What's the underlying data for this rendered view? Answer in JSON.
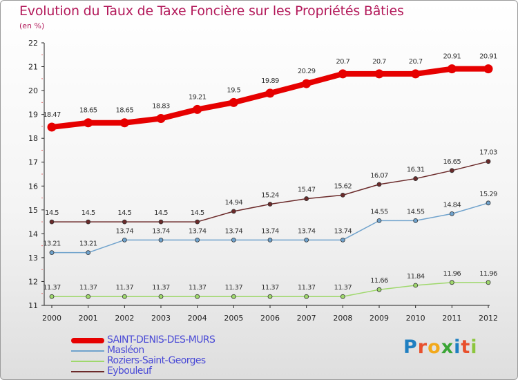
{
  "title": "Evolution du Taux de Taxe Foncière sur les Propriétés Bâties",
  "unit": "(en %)",
  "logo": {
    "text": "Proxiti",
    "letters": [
      {
        "ch": "P",
        "color": "#1f7fc1"
      },
      {
        "ch": "r",
        "color": "#e8502d"
      },
      {
        "ch": "o",
        "color": "#f2a91b"
      },
      {
        "ch": "x",
        "color": "#3aa535"
      },
      {
        "ch": "i",
        "color": "#1f7fc1"
      },
      {
        "ch": "t",
        "color": "#e8502d"
      },
      {
        "ch": "i",
        "color": "#8cc63e"
      }
    ]
  },
  "chart_data": {
    "type": "line",
    "title": "Evolution du Taux de Taxe Foncière sur les Propriétés Bâties",
    "ylabel": "(en %)",
    "xlabel": "",
    "x": [
      "2000",
      "2001",
      "2002",
      "2003",
      "2004",
      "2005",
      "2006",
      "2007",
      "2008",
      "2009",
      "2010",
      "2011",
      "2012"
    ],
    "ylim": [
      11,
      22
    ],
    "yticks": [
      11,
      12,
      13,
      14,
      15,
      16,
      17,
      18,
      19,
      20,
      21,
      22
    ],
    "grid": false,
    "legend_position": "bottom-left",
    "series": [
      {
        "name": "SAINT-DENIS-DES-MURS",
        "color": "#e60000",
        "values": [
          18.47,
          18.65,
          18.65,
          18.83,
          19.21,
          19.5,
          19.89,
          20.29,
          20.7,
          20.7,
          20.7,
          20.91,
          20.91
        ]
      },
      {
        "name": "Masléon",
        "color": "#6fa2cc",
        "values": [
          13.21,
          13.21,
          13.74,
          13.74,
          13.74,
          13.74,
          13.74,
          13.74,
          13.74,
          14.55,
          14.55,
          14.84,
          15.29
        ]
      },
      {
        "name": "Roziers-Saint-Georges",
        "color": "#9fd86c",
        "values": [
          11.37,
          11.37,
          11.37,
          11.37,
          11.37,
          11.37,
          11.37,
          11.37,
          11.37,
          11.66,
          11.84,
          11.96,
          11.96
        ]
      },
      {
        "name": "Eybouleuf",
        "color": "#6b2a2a",
        "values": [
          14.5,
          14.5,
          14.5,
          14.5,
          14.5,
          14.94,
          15.24,
          15.47,
          15.62,
          16.07,
          16.31,
          16.65,
          17.03
        ]
      }
    ]
  }
}
